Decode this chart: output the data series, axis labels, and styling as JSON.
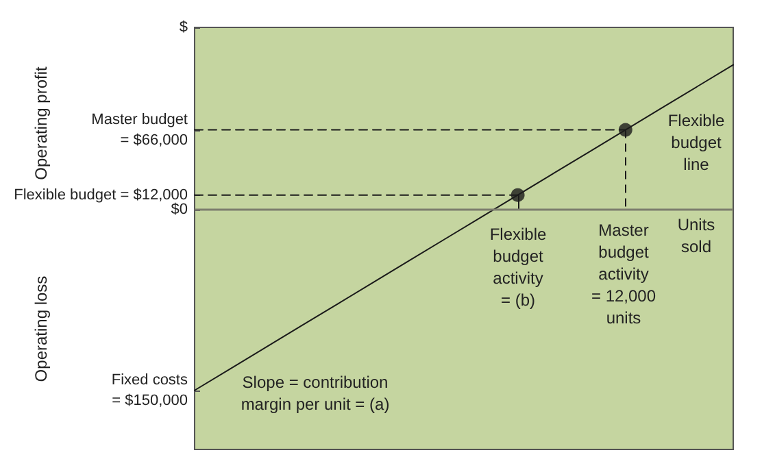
{
  "chart_data": {
    "type": "line",
    "ylabel": "Operating profit",
    "categories": [
      null,
      null,
      null,
      null,
      null,
      null,
      null,
      null,
      null,
      null,
      null,
      null,
      null,
      null,
      null,
      null
    ],
    "ylim": [
      -199000,
      151000
    ],
    "yticks": [
      {
        "value": 151000,
        "label": "$"
      },
      {
        "value": 66000,
        "label": "Master budget\n= $66,000"
      },
      {
        "value": 12000,
        "label": "Flexible budget = $12,000"
      },
      {
        "value": 0,
        "label": "$0"
      },
      {
        "value": -150000,
        "label": "Fixed costs\n= $150,000"
      }
    ],
    "tick_labels": "y",
    "grid": false,
    "marker": "none",
    "series": [
      {
        "color": "#1a1a1a",
        "values": [
          -150000,
          -132000,
          -114000,
          -96000,
          -78000,
          -60000,
          -42000,
          -24000,
          -6000,
          12000,
          30000,
          48000,
          66000,
          84000,
          102000,
          120000
        ],
        "line_style": "solid"
      },
      {
        "color": "#1a1a1a",
        "values": [
          66000,
          66000,
          66000,
          66000,
          66000,
          66000,
          66000,
          66000,
          66000,
          66000,
          66000,
          66000,
          66000,
          null,
          null,
          null
        ],
        "line_style": "dashed"
      },
      {
        "color": "#1a1a1a",
        "values": [
          12000,
          12000,
          12000,
          12000,
          12000,
          12000,
          12000,
          12000,
          12000,
          12000,
          null,
          null,
          null,
          null,
          null,
          null
        ],
        "line_style": "dashed"
      },
      {
        "type": "scatter",
        "marker": "circle",
        "color": "#1a1a1a",
        "values": [
          null,
          null,
          null,
          null,
          null,
          null,
          null,
          null,
          null,
          12000,
          null,
          null,
          null,
          null,
          null,
          null
        ],
        "line_style": "solid"
      },
      {
        "type": "scatter",
        "marker": "circle",
        "color": "#1a1a1a",
        "values": [
          null,
          null,
          null,
          null,
          null,
          null,
          null,
          null,
          null,
          null,
          null,
          null,
          66000,
          null,
          null,
          null
        ],
        "line_style": "dashed"
      }
    ],
    "ref_lines": [
      {
        "axis": "y",
        "value": 0,
        "color": "#7d7d6e"
      }
    ],
    "annotations": [
      "Flexible\nbudget\nline",
      "Flexible\nbudget\nactivity\n= (b)",
      "Master\nbudget\nactivity\n= 12,000\nunits",
      "Units\nsold",
      "Slope = contribution\nmargin per unit = (a)",
      "Operating loss"
    ]
  }
}
